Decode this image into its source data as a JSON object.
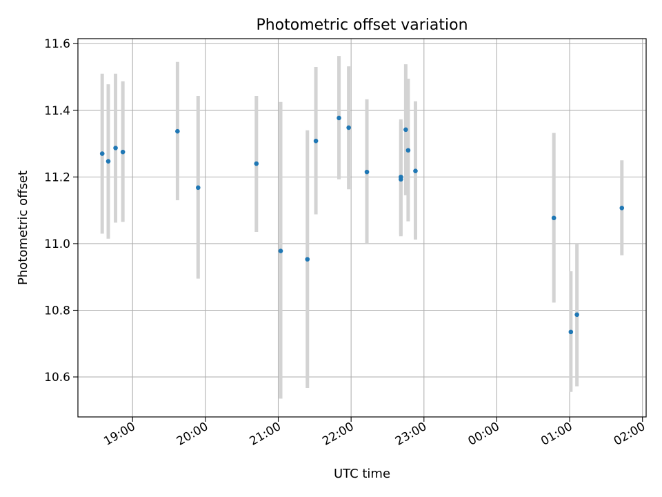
{
  "chart_data": {
    "type": "scatter",
    "title": "Photometric offset variation",
    "xlabel": "UTC time",
    "ylabel": "Photometric offset",
    "x_unit": "hours",
    "xlim": [
      "18:15",
      "02:03"
    ],
    "ylim": [
      10.48,
      11.615
    ],
    "grid": true,
    "x_ticks": [
      "19:00",
      "20:00",
      "21:00",
      "22:00",
      "23:00",
      "00:00",
      "01:00",
      "02:00"
    ],
    "y_ticks": [
      10.6,
      10.8,
      11.0,
      11.2,
      11.4,
      11.6
    ],
    "y_tick_labels": [
      "10.6",
      "10.8",
      "11.0",
      "11.2",
      "11.4",
      "11.6"
    ],
    "point_color": "#1f77b4",
    "errorbar_color": "#d3d3d3",
    "points": [
      {
        "t": "18:35",
        "y": 11.27,
        "ylow": 11.03,
        "yhigh": 11.51
      },
      {
        "t": "18:40",
        "y": 11.247,
        "ylow": 11.015,
        "yhigh": 11.478
      },
      {
        "t": "18:46",
        "y": 11.287,
        "ylow": 11.063,
        "yhigh": 11.51
      },
      {
        "t": "18:52",
        "y": 11.275,
        "ylow": 11.065,
        "yhigh": 11.487
      },
      {
        "t": "19:37",
        "y": 11.337,
        "ylow": 11.13,
        "yhigh": 11.545
      },
      {
        "t": "19:54",
        "y": 11.168,
        "ylow": 10.895,
        "yhigh": 11.443
      },
      {
        "t": "20:42",
        "y": 11.24,
        "ylow": 11.035,
        "yhigh": 11.443
      },
      {
        "t": "21:02",
        "y": 10.978,
        "ylow": 10.535,
        "yhigh": 11.425
      },
      {
        "t": "21:24",
        "y": 10.953,
        "ylow": 10.567,
        "yhigh": 11.34
      },
      {
        "t": "21:31",
        "y": 11.308,
        "ylow": 11.088,
        "yhigh": 11.53
      },
      {
        "t": "21:50",
        "y": 11.377,
        "ylow": 11.193,
        "yhigh": 11.563
      },
      {
        "t": "21:58",
        "y": 11.348,
        "ylow": 11.163,
        "yhigh": 11.532
      },
      {
        "t": "22:13",
        "y": 11.215,
        "ylow": 11.0,
        "yhigh": 11.433
      },
      {
        "t": "22:41",
        "y": 11.2,
        "ylow": 11.027,
        "yhigh": 11.373
      },
      {
        "t": "22:41",
        "y": 11.193,
        "ylow": 11.022,
        "yhigh": 11.365
      },
      {
        "t": "22:45",
        "y": 11.342,
        "ylow": 11.145,
        "yhigh": 11.538
      },
      {
        "t": "22:47",
        "y": 11.28,
        "ylow": 11.067,
        "yhigh": 11.495
      },
      {
        "t": "22:53",
        "y": 11.218,
        "ylow": 11.012,
        "yhigh": 11.427
      },
      {
        "t": "00:47",
        "y": 11.077,
        "ylow": 10.823,
        "yhigh": 11.332
      },
      {
        "t": "01:01",
        "y": 10.735,
        "ylow": 10.555,
        "yhigh": 10.917
      },
      {
        "t": "01:06",
        "y": 10.787,
        "ylow": 10.572,
        "yhigh": 11.0
      },
      {
        "t": "01:43",
        "y": 11.107,
        "ylow": 10.965,
        "yhigh": 11.25
      }
    ]
  }
}
